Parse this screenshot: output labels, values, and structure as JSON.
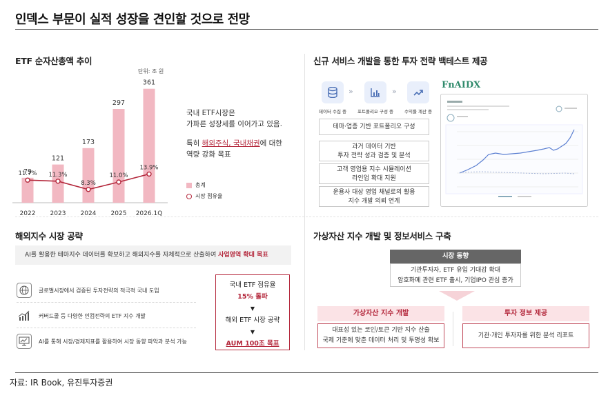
{
  "title": "인덱스 부문이 실적 성장을 견인할 것으로 전망",
  "etf": {
    "heading": "ETF 순자산총액 추이",
    "unit": "단위: 조 원",
    "desc1": "국내 ETF시장은",
    "desc2": "가파른 성장세를 이어가고 있음.",
    "desc3_pre": "특히 ",
    "desc3_red": "해외주식, 국내채권",
    "desc3_post": "에 대한",
    "desc4": "역량 강화 목표",
    "legend_bar": "총계",
    "legend_line": "시장 점유율"
  },
  "chart_data": {
    "type": "bar",
    "categories": [
      "2022",
      "2023",
      "2024",
      "2025",
      "2026.1Q"
    ],
    "series": [
      {
        "name": "총계",
        "type": "bar",
        "values": [
          79,
          121,
          173,
          297,
          361
        ],
        "labels": [
          "79",
          "121",
          "173",
          "297",
          "361"
        ]
      },
      {
        "name": "시장 점유율",
        "type": "line",
        "values": [
          11.7,
          11.3,
          8.3,
          11.0,
          13.9
        ],
        "labels": [
          "11.7%",
          "11.3%",
          "8.3%",
          "11.0%",
          "13.9%"
        ]
      }
    ],
    "ylim": [
      0,
      380
    ],
    "colors": {
      "bar": "#f2b8c2",
      "line": "#b4283c"
    }
  },
  "overseas": {
    "heading": "해외지수 시장 공략",
    "banner_pre": "AI를 활용한 테마지수 데이터를 확보하고 해외지수를 자체적으로 산출하여 ",
    "banner_red": "사업영역 확대 목표",
    "items": [
      {
        "icon": "globe-icon",
        "text": "글로벌시장에서 검증된 투자전략의 적극적 국내 도입"
      },
      {
        "icon": "growth-chart-icon",
        "text": "커버드콜 등 다양한 인컴전략의 ETF 지수 개발"
      },
      {
        "icon": "monitor-analytics-icon",
        "text": "AI를 통해 시장/경제지표를 활용하여 시장 동향 파악과 분석 가능"
      }
    ],
    "goal_line1": "국내 ETF 점유율",
    "goal_line2": "15% 돌파",
    "goal_line3": "해외 ETF 시장 공략",
    "goal_line4": "AUM 100조 목표",
    "arrow": "▼"
  },
  "backtest": {
    "heading": "신규 서비스 개발을 통한 투자 전략 백테스트 제공",
    "steps": [
      {
        "icon": "database-icon",
        "label": "데이터 수집 중"
      },
      {
        "icon": "bar-chart-icon",
        "label": "포트폴리오 구성 중"
      },
      {
        "icon": "trend-up-icon",
        "label": "수익률 계산 중"
      }
    ],
    "chevron": "»",
    "boxes": [
      [
        "테마·업종 기반 포트폴리오 구성"
      ],
      [
        "과거 데이터 기반",
        "투자 전략 성과 검증 및 분석"
      ],
      [
        "고객 영업용 지수 시뮬레이션",
        "라인업 확대 지원"
      ],
      [
        "운용사 대상 영업 채널로의 활용",
        "지수 개발 의뢰 연계"
      ]
    ],
    "brand": "FnAIDX"
  },
  "virtual": {
    "heading": "가상자산 지수 개발 및 정보서비스 구축",
    "trend_header": "시장 동향",
    "trend_line1": "기관투자자, ETF 유입 기대감 확대",
    "trend_line2": "암호화폐 관련 ETF 출시, 기업IPO 관심 증가",
    "left_header": "가상자산 지수 개발",
    "left_line1": "대표성 있는 코인/토큰 기반 지수 산출",
    "left_line2": "국제 기준에 맞춘 데이터 처리 및 투명성 확보",
    "right_header": "투자 정보 제공",
    "right_line1": "기관·개인 투자자를 위한 분석 리포트"
  },
  "footer": "자료: IR Book, 유진투자증권"
}
